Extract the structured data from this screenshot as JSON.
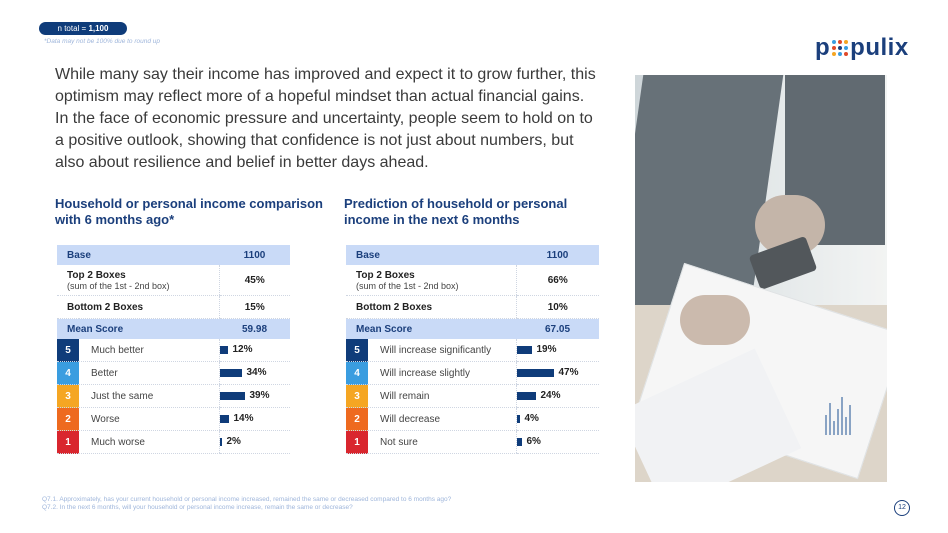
{
  "header": {
    "n_total_prefix": "n total = ",
    "n_total_value": "1,100",
    "note": "*Data may not be 100% due to round up",
    "logo_text_left": "p",
    "logo_text_right": "pulix"
  },
  "intro": "While many say their income has improved and expect it to grow further, this optimism may reflect more of a hopeful mindset than actual financial gains. In the face of economic pressure and uncertainty, people seem to hold on to a positive outlook, showing that confidence is not just about numbers, but also about resilience and belief in better days ahead.",
  "colors": {
    "scale5": "#0f3c7a",
    "scale4": "#3a9de0",
    "scale3": "#f5a623",
    "scale2": "#ee6a1f",
    "scale1": "#d9262e",
    "bar": "#0f3c7a",
    "header": "#c9daf7"
  },
  "left": {
    "title": "Household or personal income comparison with 6 months ago*",
    "base_label": "Base",
    "base_value": "1100",
    "top2_label": "Top 2 Boxes",
    "top2_sub": "(sum of the 1st - 2nd box)",
    "top2_value": "45%",
    "bottom2_label": "Bottom 2 Boxes",
    "bottom2_value": "15%",
    "mean_label": "Mean Score",
    "mean_value": "59.98",
    "rows": [
      {
        "num": "5",
        "label": "Much better",
        "value": 12,
        "text": "12%"
      },
      {
        "num": "4",
        "label": "Better",
        "value": 34,
        "text": "34%"
      },
      {
        "num": "3",
        "label": "Just the same",
        "value": 39,
        "text": "39%"
      },
      {
        "num": "2",
        "label": "Worse",
        "value": 14,
        "text": "14%"
      },
      {
        "num": "1",
        "label": "Much worse",
        "value": 2,
        "text": "2%"
      }
    ]
  },
  "right": {
    "title": "Prediction of household or personal income in the next 6 months",
    "base_label": "Base",
    "base_value": "1100",
    "top2_label": "Top 2 Boxes",
    "top2_sub": "(sum of the 1st - 2nd box)",
    "top2_value": "66%",
    "bottom2_label": "Bottom 2 Boxes",
    "bottom2_value": "10%",
    "mean_label": "Mean Score",
    "mean_value": "67.05",
    "rows": [
      {
        "num": "5",
        "label": "Will increase significantly",
        "value": 19,
        "text": "19%"
      },
      {
        "num": "4",
        "label": "Will increase slightly",
        "value": 47,
        "text": "47%"
      },
      {
        "num": "3",
        "label": "Will remain",
        "value": 24,
        "text": "24%"
      },
      {
        "num": "2",
        "label": "Will decrease",
        "value": 4,
        "text": "4%"
      },
      {
        "num": "1",
        "label": "Not sure",
        "value": 6,
        "text": "6%"
      }
    ]
  },
  "footer": {
    "q1": "Q7.1. Approximately, has your current household or personal income increased, remained the same or decreased compared to 6 months ago?",
    "q2": "Q7.2. In the next 6 months, will your household or personal income increase, remain the same or decrease?",
    "page": "12"
  }
}
